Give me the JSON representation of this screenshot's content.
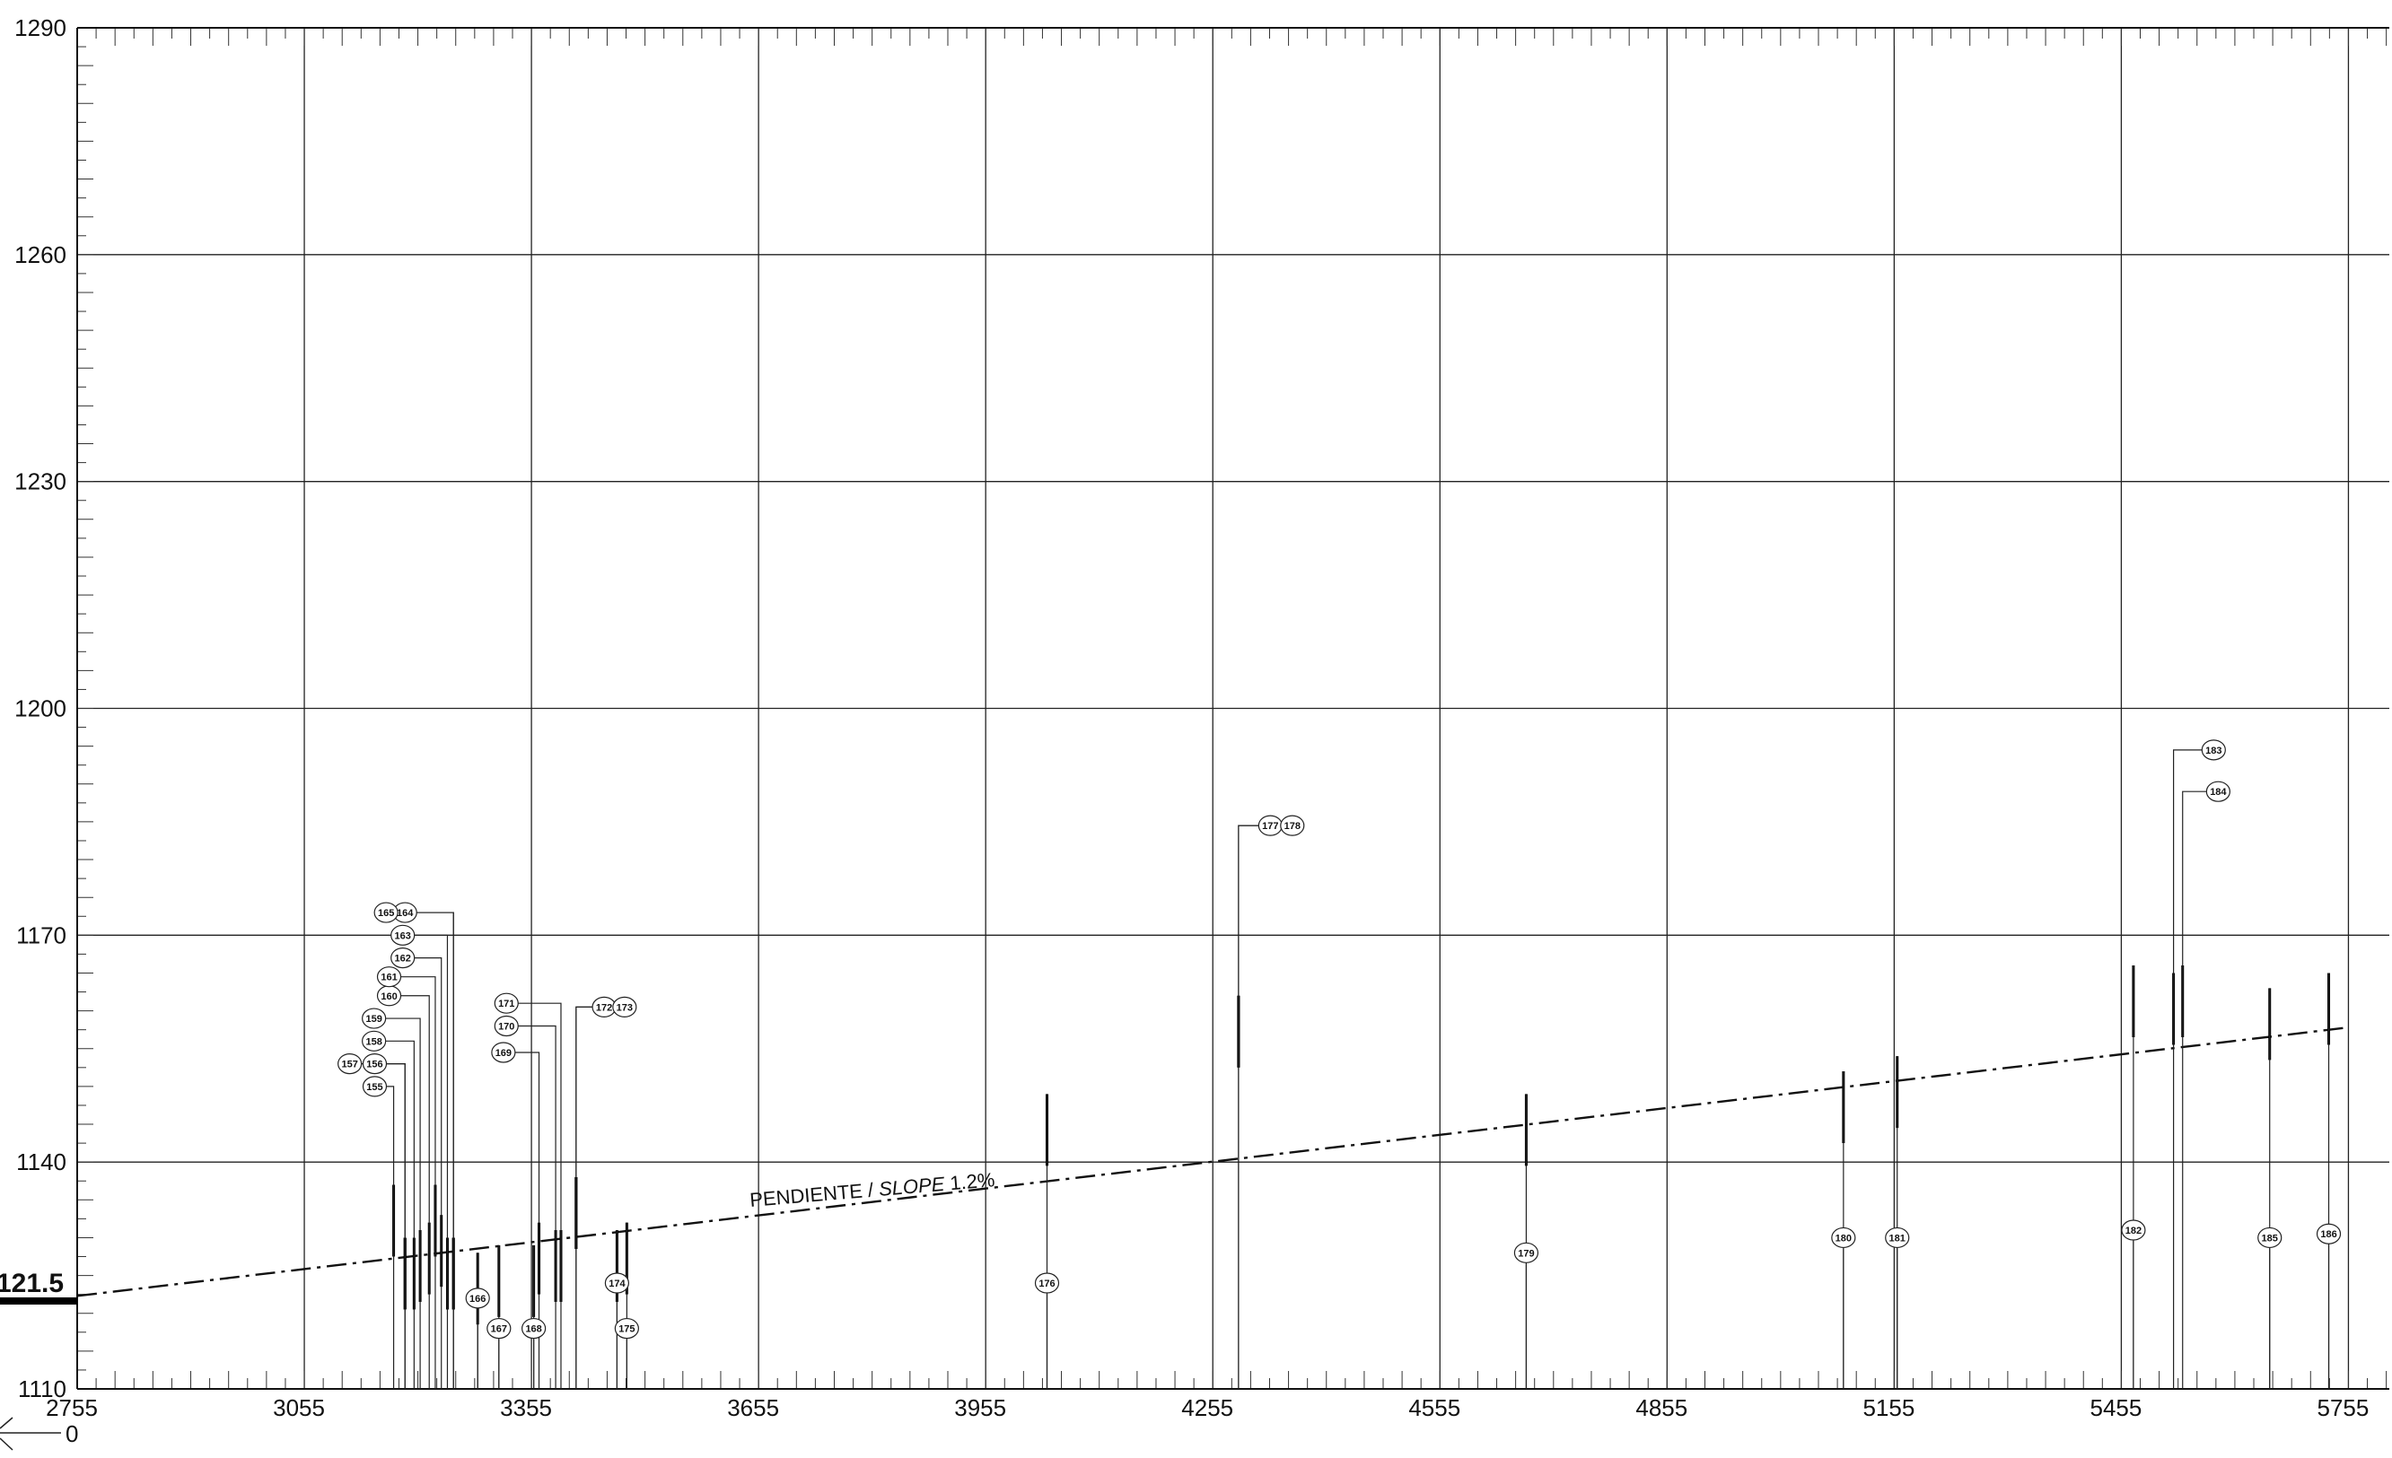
{
  "chart_data": {
    "type": "profile",
    "x_ticks": [
      2755,
      3055,
      3355,
      3655,
      3955,
      4255,
      4555,
      4855,
      5155,
      5455,
      5755
    ],
    "y_ticks": [
      1110,
      1140,
      1170,
      1200,
      1230,
      1260,
      1290
    ],
    "xlim": [
      2755,
      5809
    ],
    "ylim": [
      1110,
      1290
    ],
    "grid": true,
    "start_label": "121.5",
    "origin_label": "0",
    "slope": {
      "label_prefix": "PENDIENTE / ",
      "label_italic": "SLOPE",
      "label_suffix": " 1.2%",
      "x": [
        2755,
        5755
      ],
      "y": [
        1122.3,
        1157.8
      ]
    },
    "stakes": [
      {
        "id": "155",
        "x": 3173,
        "top": 1137,
        "bottom": 1110,
        "label_x": 3148,
        "label_y": 1150,
        "label_side": "top"
      },
      {
        "id": "156",
        "x": 3188,
        "top": 1130,
        "bottom": 1110,
        "label_x": 3148,
        "label_y": 1153,
        "label_side": "top"
      },
      {
        "id": "157",
        "x": 3188,
        "top": 1130,
        "bottom": 1110,
        "label_x": 3115,
        "label_y": 1153,
        "label_side": "top"
      },
      {
        "id": "158",
        "x": 3200,
        "top": 1130,
        "bottom": 1110,
        "label_x": 3147,
        "label_y": 1156,
        "label_side": "top"
      },
      {
        "id": "159",
        "x": 3208,
        "top": 1131,
        "bottom": 1110,
        "label_x": 3147,
        "label_y": 1159,
        "label_side": "top"
      },
      {
        "id": "160",
        "x": 3220,
        "top": 1132,
        "bottom": 1110,
        "label_x": 3167,
        "label_y": 1162,
        "label_side": "top"
      },
      {
        "id": "161",
        "x": 3228,
        "top": 1137,
        "bottom": 1110,
        "label_x": 3167,
        "label_y": 1164.5,
        "label_side": "top"
      },
      {
        "id": "162",
        "x": 3236,
        "top": 1133,
        "bottom": 1110,
        "label_x": 3185,
        "label_y": 1167,
        "label_side": "top"
      },
      {
        "id": "163",
        "x": 3244,
        "top": 1130,
        "bottom": 1110,
        "label_x": 3185,
        "label_y": 1170,
        "label_side": "top"
      },
      {
        "id": "164",
        "x": 3252,
        "top": 1130,
        "bottom": 1110,
        "label_x": 3188,
        "label_y": 1173,
        "label_side": "top"
      },
      {
        "id": "165",
        "x": 3252,
        "top": 1130,
        "bottom": 1110,
        "label_x": 3163,
        "label_y": 1173,
        "label_side": "top"
      },
      {
        "id": "166",
        "x": 3284,
        "top": 1128,
        "bottom": 1110,
        "label_x": 3284,
        "label_y": 1122,
        "label_side": "bottom"
      },
      {
        "id": "167",
        "x": 3312,
        "top": 1129,
        "bottom": 1110,
        "label_x": 3312,
        "label_y": 1118,
        "label_side": "bottom"
      },
      {
        "id": "168",
        "x": 3358,
        "top": 1129,
        "bottom": 1110,
        "label_x": 3358,
        "label_y": 1118,
        "label_side": "bottom"
      },
      {
        "id": "169",
        "x": 3365,
        "top": 1132,
        "bottom": 1110,
        "label_x": 3318,
        "label_y": 1154.5,
        "label_side": "top"
      },
      {
        "id": "170",
        "x": 3387,
        "top": 1131,
        "bottom": 1110,
        "label_x": 3322,
        "label_y": 1158,
        "label_side": "top"
      },
      {
        "id": "171",
        "x": 3394,
        "top": 1131,
        "bottom": 1110,
        "label_x": 3322,
        "label_y": 1161,
        "label_side": "top"
      },
      {
        "id": "172",
        "x": 3414,
        "top": 1138,
        "bottom": 1110,
        "label_x": 3451,
        "label_y": 1160.5,
        "label_side": "top"
      },
      {
        "id": "173",
        "x": 3414,
        "top": 1138,
        "bottom": 1110,
        "label_x": 3478,
        "label_y": 1160.5,
        "label_side": "top"
      },
      {
        "id": "174",
        "x": 3468,
        "top": 1131,
        "bottom": 1110,
        "label_x": 3468,
        "label_y": 1124,
        "label_side": "bottom"
      },
      {
        "id": "175",
        "x": 3481,
        "top": 1132,
        "bottom": 1110,
        "label_x": 3481,
        "label_y": 1118,
        "label_side": "bottom"
      },
      {
        "id": "176",
        "x": 4036,
        "top": 1149,
        "bottom": 1110,
        "label_x": 4036,
        "label_y": 1124,
        "label_side": "bottom"
      },
      {
        "id": "177",
        "x": 4289,
        "top": 1162,
        "bottom": 1110,
        "label_x": 4331,
        "label_y": 1184.5,
        "label_side": "top"
      },
      {
        "id": "178",
        "x": 4289,
        "top": 1162,
        "bottom": 1110,
        "label_x": 4360,
        "label_y": 1184.5,
        "label_side": "top"
      },
      {
        "id": "179",
        "x": 4669,
        "top": 1149,
        "bottom": 1110,
        "label_x": 4669,
        "label_y": 1128,
        "label_side": "bottom"
      },
      {
        "id": "180",
        "x": 5088,
        "top": 1152,
        "bottom": 1110,
        "label_x": 5088,
        "label_y": 1130,
        "label_side": "bottom"
      },
      {
        "id": "181",
        "x": 5159,
        "top": 1154,
        "bottom": 1110,
        "label_x": 5159,
        "label_y": 1130,
        "label_side": "bottom"
      },
      {
        "id": "182",
        "x": 5471,
        "top": 1166,
        "bottom": 1110,
        "label_x": 5471,
        "label_y": 1131,
        "label_side": "bottom"
      },
      {
        "id": "183",
        "x": 5524,
        "top": 1165,
        "bottom": 1110,
        "label_x": 5577,
        "label_y": 1194.5,
        "label_side": "top"
      },
      {
        "id": "184",
        "x": 5536,
        "top": 1166,
        "bottom": 1110,
        "label_x": 5583,
        "label_y": 1189,
        "label_side": "top"
      },
      {
        "id": "185",
        "x": 5651,
        "top": 1163,
        "bottom": 1110,
        "label_x": 5651,
        "label_y": 1130,
        "label_side": "bottom"
      },
      {
        "id": "186",
        "x": 5729,
        "top": 1165,
        "bottom": 1110,
        "label_x": 5729,
        "label_y": 1130.5,
        "label_side": "bottom"
      }
    ]
  }
}
